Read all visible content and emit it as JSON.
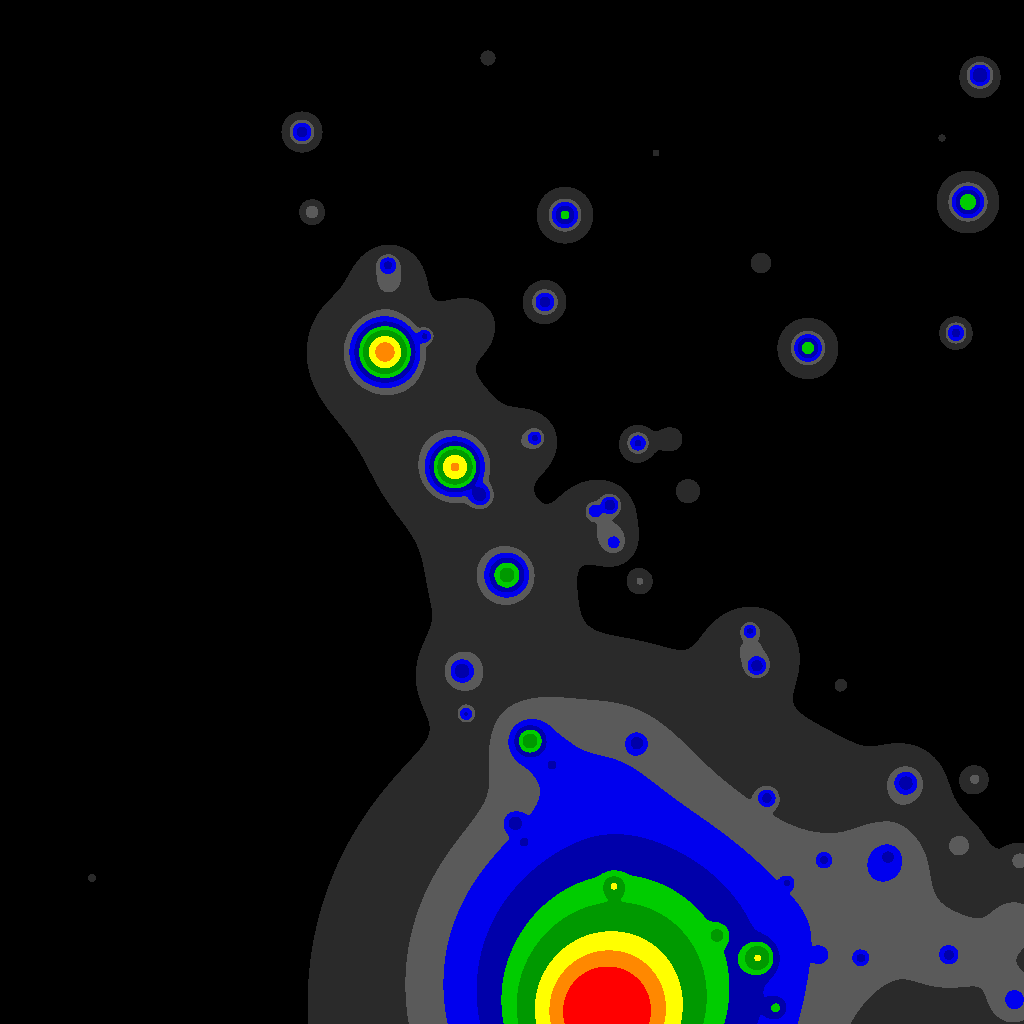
{
  "chart_data": {
    "type": "contour",
    "tick_labels": false,
    "xlim": [
      0,
      1024
    ],
    "ylim": [
      1024,
      0
    ],
    "levels": [
      0.05,
      0.12,
      0.2,
      0.35,
      0.6,
      0.9,
      1.5,
      2.2,
      3.0,
      1000
    ],
    "colors": [
      "#2a2a2a",
      "#5a5a5a",
      "#0000ee",
      "#0000aa",
      "#00cc00",
      "#009900",
      "#ffff00",
      "#ff8800",
      "#ff0000"
    ],
    "sources": [
      [
        385,
        352,
        2.6,
        14
      ],
      [
        455,
        467,
        2.2,
        12
      ],
      [
        507,
        575,
        1.0,
        10
      ],
      [
        388,
        265,
        0.3,
        5
      ],
      [
        425,
        336,
        0.3,
        4
      ],
      [
        535,
        438,
        0.3,
        4
      ],
      [
        480,
        495,
        0.4,
        6
      ],
      [
        375,
        350,
        0.09,
        60
      ],
      [
        450,
        460,
        0.09,
        55
      ],
      [
        500,
        580,
        0.09,
        45
      ],
      [
        390,
        275,
        0.09,
        20
      ],
      [
        470,
        325,
        0.08,
        18
      ],
      [
        530,
        440,
        0.08,
        18
      ],
      [
        302,
        132,
        0.35,
        6
      ],
      [
        302,
        132,
        0.09,
        18
      ],
      [
        312,
        212,
        0.15,
        8
      ],
      [
        565,
        215,
        0.6,
        7
      ],
      [
        565,
        215,
        0.09,
        25
      ],
      [
        545,
        302,
        0.35,
        6
      ],
      [
        545,
        302,
        0.09,
        18
      ],
      [
        808,
        348,
        0.7,
        7
      ],
      [
        808,
        348,
        0.09,
        26
      ],
      [
        968,
        202,
        0.8,
        8
      ],
      [
        968,
        202,
        0.09,
        28
      ],
      [
        980,
        75,
        0.5,
        6
      ],
      [
        980,
        78,
        0.09,
        18
      ],
      [
        956,
        333,
        0.35,
        5
      ],
      [
        956,
        333,
        0.09,
        14
      ],
      [
        638,
        443,
        0.3,
        5
      ],
      [
        638,
        443,
        0.09,
        14
      ],
      [
        671,
        439,
        0.1,
        8
      ],
      [
        688,
        491,
        0.1,
        8
      ],
      [
        610,
        505,
        0.4,
        5
      ],
      [
        595,
        511,
        0.25,
        4
      ],
      [
        600,
        515,
        0.09,
        25
      ],
      [
        614,
        542,
        0.09,
        12
      ],
      [
        614,
        543,
        0.13,
        4
      ],
      [
        640,
        581,
        0.1,
        7
      ],
      [
        761,
        263,
        0.1,
        8
      ],
      [
        488,
        58,
        0.1,
        6
      ],
      [
        750,
        631,
        0.3,
        4
      ],
      [
        757,
        666,
        0.4,
        5
      ],
      [
        752,
        650,
        0.09,
        25
      ],
      [
        906,
        783,
        0.35,
        6
      ],
      [
        906,
        783,
        0.09,
        18
      ],
      [
        975,
        779,
        0.1,
        7
      ],
      [
        960,
        845,
        0.1,
        8
      ],
      [
        92,
        878,
        0.08,
        3
      ],
      [
        656,
        153,
        0.08,
        3
      ],
      [
        942,
        138,
        0.08,
        3
      ],
      [
        841,
        685,
        0.08,
        3
      ],
      [
        462,
        671,
        0.4,
        6
      ],
      [
        466,
        714,
        0.3,
        4
      ],
      [
        530,
        741,
        1.0,
        8
      ],
      [
        552,
        765,
        0.3,
        3
      ],
      [
        637,
        743,
        0.35,
        5
      ],
      [
        767,
        798,
        0.35,
        5
      ],
      [
        515,
        823,
        0.35,
        5
      ],
      [
        524,
        842,
        0.25,
        3
      ],
      [
        824,
        860,
        0.3,
        4
      ],
      [
        888,
        857,
        0.3,
        4
      ],
      [
        787,
        883,
        0.25,
        3
      ],
      [
        614,
        886,
        0.9,
        6
      ],
      [
        758,
        958,
        1.2,
        9
      ],
      [
        718,
        935,
        0.5,
        6
      ],
      [
        776,
        1008,
        0.4,
        6
      ],
      [
        861,
        958,
        0.3,
        4
      ],
      [
        949,
        955,
        0.3,
        4
      ],
      [
        820,
        955,
        0.13,
        4
      ],
      [
        1015,
        1000,
        0.1,
        10
      ],
      [
        1020,
        860,
        0.1,
        8
      ],
      [
        462,
        672,
        0.09,
        25
      ],
      [
        530,
        740,
        0.09,
        30
      ],
      [
        650,
        1024,
        0.1,
        270
      ],
      [
        600,
        760,
        0.09,
        60
      ],
      [
        880,
        900,
        0.09,
        60
      ],
      [
        950,
        955,
        0.09,
        25
      ],
      [
        888,
        857,
        0.09,
        20
      ],
      [
        1015,
        1000,
        0.09,
        30
      ],
      [
        1020,
        920,
        0.09,
        30
      ],
      [
        605,
        1015,
        3.4,
        40
      ],
      [
        620,
        985,
        1.0,
        70
      ],
      [
        620,
        975,
        0.3,
        110
      ]
    ]
  }
}
